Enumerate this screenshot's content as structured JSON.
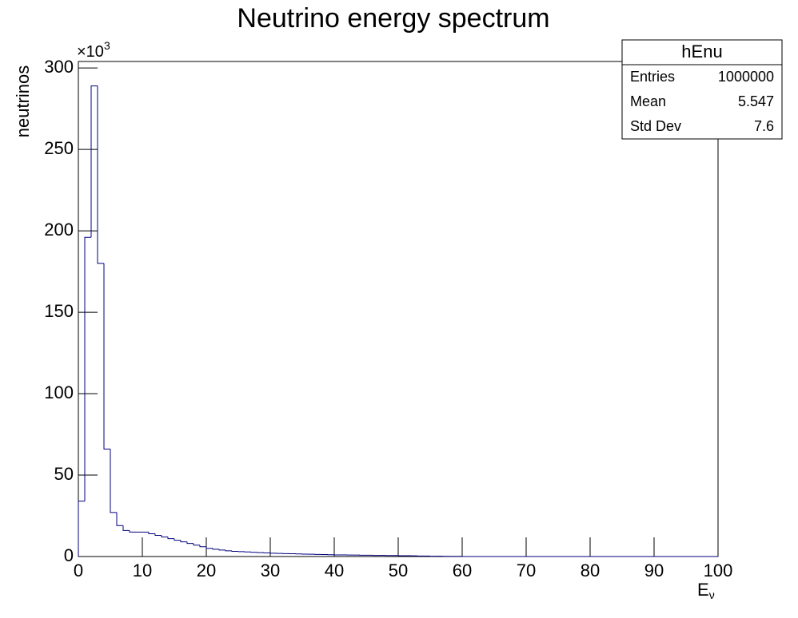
{
  "chart_data": {
    "type": "histogram",
    "title": "Neutrino energy spectrum",
    "x_label": {
      "text": "E",
      "subscript": "ν"
    },
    "y_label": "neutrinos",
    "y_multiplier": {
      "base": "×10",
      "exponent": "3"
    },
    "bins": [
      0,
      1,
      2,
      3,
      4,
      5,
      6,
      7,
      8,
      9,
      10,
      11,
      12,
      13,
      14,
      15,
      16,
      17,
      18,
      19,
      20,
      21,
      22,
      23,
      24,
      25,
      26,
      27,
      28,
      29,
      30,
      31,
      32,
      33,
      34,
      35,
      36,
      37,
      38,
      39,
      40,
      41,
      42,
      43,
      44,
      45,
      46,
      47,
      48,
      49,
      50,
      51,
      52,
      53,
      54,
      55,
      56,
      57,
      58,
      59,
      60,
      61,
      62,
      63,
      64,
      65,
      66,
      67,
      68,
      69,
      70,
      71,
      72,
      73,
      74,
      75,
      76,
      77,
      78,
      79,
      80,
      81,
      82,
      83,
      84,
      85,
      86,
      87,
      88,
      89,
      90,
      91,
      92,
      93,
      94,
      95,
      96,
      97,
      98,
      99,
      100
    ],
    "values": [
      34,
      196,
      289,
      180,
      66,
      27,
      19,
      16,
      15,
      15,
      15,
      14,
      13,
      12,
      11,
      10,
      9,
      8,
      7,
      6,
      5,
      4.5,
      4,
      3.5,
      3.2,
      3,
      2.8,
      2.6,
      2.4,
      2.2,
      2,
      1.9,
      1.8,
      1.7,
      1.6,
      1.5,
      1.4,
      1.3,
      1.2,
      1.1,
      1,
      1,
      0.9,
      0.9,
      0.8,
      0.8,
      0.7,
      0.7,
      0.6,
      0.6,
      0.5,
      0.5,
      0.4,
      0.3,
      0.3,
      0.2,
      0.2,
      0.1,
      0.1,
      0.1,
      0,
      0,
      0,
      0,
      0,
      0,
      0,
      0,
      0,
      0,
      0,
      0,
      0,
      0,
      0,
      0,
      0,
      0,
      0,
      0,
      0,
      0,
      0,
      0,
      0,
      0,
      0,
      0,
      0,
      0,
      0,
      0,
      0,
      0,
      0,
      0,
      0,
      0,
      0,
      0
    ],
    "color": "#000080",
    "xlim": [
      0,
      100
    ],
    "xticks": [
      0,
      10,
      20,
      30,
      40,
      50,
      60,
      70,
      80,
      90,
      100
    ],
    "ylim": [
      0,
      304
    ],
    "yticks": [
      0,
      50,
      100,
      150,
      200,
      250,
      300
    ],
    "stats": {
      "name": "hEnu",
      "rows": [
        [
          "Entries",
          "1000000"
        ],
        [
          "Mean",
          "5.547"
        ],
        [
          "Std Dev",
          "7.6"
        ]
      ]
    }
  }
}
